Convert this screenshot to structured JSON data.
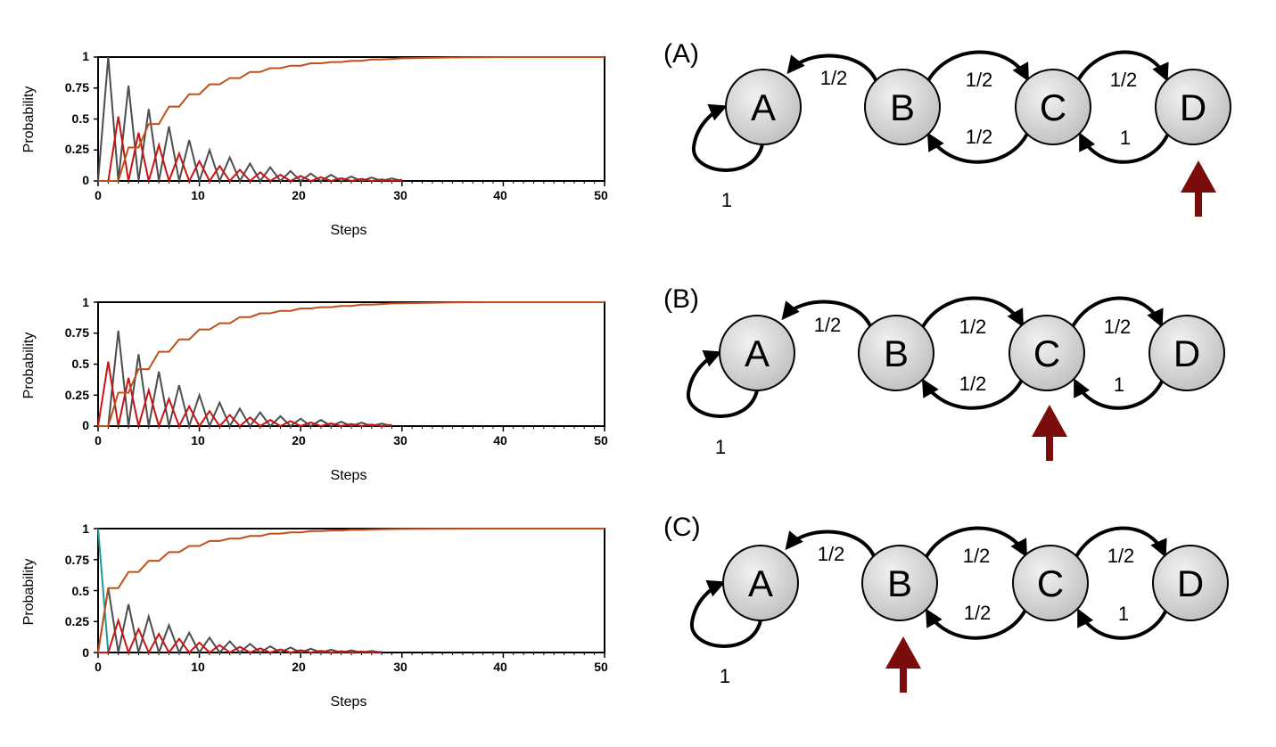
{
  "colors": {
    "absorbed": "#c0501a",
    "state_b": "#4d4d4d",
    "state_c": "#c81414",
    "state_d": "#1a9a9a",
    "arrow": "#7a0c0c",
    "node_fill": "#d9d9d9"
  },
  "chart_data": [
    {
      "type": "line",
      "xlabel": "Steps",
      "ylabel": "Probability",
      "xlim": [
        0,
        50
      ],
      "ylim": [
        0,
        1
      ],
      "x_ticks": [
        0,
        10,
        20,
        30,
        40,
        50
      ],
      "y_ticks": [
        0,
        0.25,
        0.5,
        0.75,
        1
      ],
      "y_tick_labels": [
        "0",
        "0.25",
        "0.5",
        "0.75",
        "1"
      ],
      "grid": false,
      "legend": "none",
      "start_state": "D",
      "series": [
        {
          "key": "state_b",
          "color": "#4d4d4d",
          "x": [
            0,
            1,
            2,
            3,
            4,
            5,
            6,
            7,
            8,
            9,
            10,
            11,
            12,
            13,
            14,
            15,
            16,
            17,
            18,
            19,
            20,
            21,
            22,
            23,
            24,
            25,
            26,
            27,
            28,
            29,
            30
          ],
          "y": [
            0,
            1,
            0,
            0.77,
            0,
            0.58,
            0,
            0.44,
            0,
            0.33,
            0,
            0.25,
            0,
            0.19,
            0,
            0.14,
            0,
            0.11,
            0,
            0.08,
            0,
            0.06,
            0,
            0.05,
            0,
            0.035,
            0,
            0.027,
            0,
            0.02,
            0
          ]
        },
        {
          "key": "state_c",
          "color": "#c81414",
          "x": [
            0,
            1,
            2,
            3,
            4,
            5,
            6,
            7,
            8,
            9,
            10,
            11,
            12,
            13,
            14,
            15,
            16,
            17,
            18,
            19,
            20,
            21,
            22,
            23,
            24,
            25,
            26,
            27,
            28,
            29,
            30
          ],
          "y": [
            0,
            0,
            0.52,
            0,
            0.39,
            0,
            0.29,
            0,
            0.22,
            0,
            0.16,
            0,
            0.12,
            0,
            0.09,
            0,
            0.07,
            0,
            0.05,
            0,
            0.04,
            0,
            0.03,
            0,
            0.022,
            0,
            0.017,
            0,
            0.013,
            0,
            0.01
          ]
        },
        {
          "key": "absorbed",
          "color": "#c0501a",
          "x": [
            0,
            1,
            2,
            3,
            4,
            5,
            6,
            7,
            8,
            9,
            10,
            11,
            12,
            13,
            14,
            15,
            16,
            17,
            18,
            19,
            20,
            21,
            22,
            23,
            24,
            25,
            26,
            27,
            28,
            29,
            30,
            32,
            34,
            36,
            40,
            50
          ],
          "y": [
            0,
            0,
            0,
            0.27,
            0.27,
            0.46,
            0.46,
            0.6,
            0.6,
            0.7,
            0.7,
            0.78,
            0.78,
            0.83,
            0.83,
            0.88,
            0.88,
            0.91,
            0.91,
            0.93,
            0.93,
            0.95,
            0.95,
            0.96,
            0.96,
            0.97,
            0.97,
            0.98,
            0.98,
            0.985,
            0.99,
            0.993,
            0.996,
            0.998,
            1,
            1
          ]
        }
      ]
    },
    {
      "type": "line",
      "xlabel": "Steps",
      "ylabel": "Probability",
      "xlim": [
        0,
        50
      ],
      "ylim": [
        0,
        1
      ],
      "x_ticks": [
        0,
        10,
        20,
        30,
        40,
        50
      ],
      "y_ticks": [
        0,
        0.25,
        0.5,
        0.75,
        1
      ],
      "y_tick_labels": [
        "0",
        "0.25",
        "0.5",
        "0.75",
        "1"
      ],
      "grid": false,
      "legend": "none",
      "start_state": "C",
      "series": [
        {
          "key": "state_b",
          "color": "#4d4d4d",
          "x": [
            0,
            1,
            2,
            3,
            4,
            5,
            6,
            7,
            8,
            9,
            10,
            11,
            12,
            13,
            14,
            15,
            16,
            17,
            18,
            19,
            20,
            21,
            22,
            23,
            24,
            25,
            26,
            27,
            28,
            29
          ],
          "y": [
            0,
            0,
            0.77,
            0,
            0.58,
            0,
            0.44,
            0,
            0.33,
            0,
            0.25,
            0,
            0.19,
            0,
            0.14,
            0,
            0.11,
            0,
            0.08,
            0,
            0.06,
            0,
            0.05,
            0,
            0.035,
            0,
            0.027,
            0,
            0.02,
            0
          ]
        },
        {
          "key": "state_c",
          "color": "#c81414",
          "x": [
            0,
            1,
            2,
            3,
            4,
            5,
            6,
            7,
            8,
            9,
            10,
            11,
            12,
            13,
            14,
            15,
            16,
            17,
            18,
            19,
            20,
            21,
            22,
            23,
            24,
            25,
            26,
            27,
            28,
            29
          ],
          "y": [
            0,
            0.52,
            0,
            0.39,
            0,
            0.29,
            0,
            0.22,
            0,
            0.16,
            0,
            0.12,
            0,
            0.09,
            0,
            0.07,
            0,
            0.05,
            0,
            0.04,
            0,
            0.03,
            0,
            0.022,
            0,
            0.017,
            0,
            0.013,
            0,
            0.01
          ]
        },
        {
          "key": "absorbed",
          "color": "#c0501a",
          "x": [
            0,
            1,
            2,
            3,
            4,
            5,
            6,
            7,
            8,
            9,
            10,
            11,
            12,
            13,
            14,
            15,
            16,
            17,
            18,
            19,
            20,
            21,
            22,
            23,
            24,
            25,
            26,
            27,
            28,
            29,
            31,
            33,
            35,
            39,
            50
          ],
          "y": [
            0,
            0,
            0.27,
            0.27,
            0.46,
            0.46,
            0.6,
            0.6,
            0.7,
            0.7,
            0.78,
            0.78,
            0.83,
            0.83,
            0.88,
            0.88,
            0.91,
            0.91,
            0.93,
            0.93,
            0.95,
            0.95,
            0.96,
            0.96,
            0.97,
            0.97,
            0.98,
            0.98,
            0.985,
            0.99,
            0.993,
            0.996,
            0.998,
            1,
            1
          ]
        }
      ]
    },
    {
      "type": "line",
      "xlabel": "Steps",
      "ylabel": "Probability",
      "xlim": [
        0,
        50
      ],
      "ylim": [
        0,
        1
      ],
      "x_ticks": [
        0,
        10,
        20,
        30,
        40,
        50
      ],
      "y_ticks": [
        0,
        0.25,
        0.5,
        0.75,
        1
      ],
      "y_tick_labels": [
        "0",
        "0.25",
        "0.5",
        "0.75",
        "1"
      ],
      "grid": false,
      "legend": "none",
      "start_state": "B",
      "series": [
        {
          "key": "state_d",
          "color": "#1a9a9a",
          "x": [
            0,
            1
          ],
          "y": [
            1,
            0
          ]
        },
        {
          "key": "state_b",
          "color": "#4d4d4d",
          "x": [
            0,
            1,
            2,
            3,
            4,
            5,
            6,
            7,
            8,
            9,
            10,
            11,
            12,
            13,
            14,
            15,
            16,
            17,
            18,
            19,
            20,
            21,
            22,
            23,
            24,
            25,
            26,
            27,
            28
          ],
          "y": [
            0,
            0.52,
            0,
            0.39,
            0,
            0.29,
            0,
            0.22,
            0,
            0.16,
            0,
            0.12,
            0,
            0.09,
            0,
            0.07,
            0,
            0.05,
            0,
            0.04,
            0,
            0.03,
            0,
            0.022,
            0,
            0.017,
            0,
            0.013,
            0
          ]
        },
        {
          "key": "state_c",
          "color": "#c81414",
          "x": [
            0,
            1,
            2,
            3,
            4,
            5,
            6,
            7,
            8,
            9,
            10,
            11,
            12,
            13,
            14,
            15,
            16,
            17,
            18,
            19,
            20,
            21,
            22,
            23,
            24,
            25,
            26,
            27,
            28
          ],
          "y": [
            0,
            0,
            0.26,
            0,
            0.19,
            0,
            0.15,
            0,
            0.11,
            0,
            0.08,
            0,
            0.06,
            0,
            0.045,
            0,
            0.034,
            0,
            0.025,
            0,
            0.019,
            0,
            0.014,
            0,
            0.011,
            0,
            0.008,
            0,
            0.006
          ]
        },
        {
          "key": "absorbed",
          "color": "#c0501a",
          "x": [
            0,
            1,
            2,
            3,
            4,
            5,
            6,
            7,
            8,
            9,
            10,
            11,
            12,
            13,
            14,
            15,
            16,
            17,
            18,
            19,
            20,
            21,
            22,
            23,
            24,
            25,
            26,
            27,
            28,
            30,
            32,
            34,
            38,
            50
          ],
          "y": [
            0,
            0.52,
            0.52,
            0.65,
            0.65,
            0.74,
            0.74,
            0.81,
            0.81,
            0.86,
            0.86,
            0.9,
            0.9,
            0.92,
            0.92,
            0.94,
            0.94,
            0.96,
            0.96,
            0.97,
            0.97,
            0.98,
            0.98,
            0.985,
            0.985,
            0.99,
            0.99,
            0.993,
            0.995,
            0.997,
            0.998,
            0.999,
            1,
            1
          ]
        }
      ]
    }
  ],
  "diagrams": [
    {
      "panel_label": "(A)",
      "nodes": [
        "A",
        "B",
        "C",
        "D"
      ],
      "self_loop_label": "1",
      "edge_labels": {
        "b_to_a": "1/2",
        "b_to_c": "1/2",
        "c_to_b": "1/2",
        "c_to_d": "1/2",
        "d_to_c": "1"
      },
      "start_node": "D"
    },
    {
      "panel_label": "(B)",
      "nodes": [
        "A",
        "B",
        "C",
        "D"
      ],
      "self_loop_label": "1",
      "edge_labels": {
        "b_to_a": "1/2",
        "b_to_c": "1/2",
        "c_to_b": "1/2",
        "c_to_d": "1/2",
        "d_to_c": "1"
      },
      "start_node": "C"
    },
    {
      "panel_label": "(C)",
      "nodes": [
        "A",
        "B",
        "C",
        "D"
      ],
      "self_loop_label": "1",
      "edge_labels": {
        "b_to_a": "1/2",
        "b_to_c": "1/2",
        "c_to_b": "1/2",
        "c_to_d": "1/2",
        "d_to_c": "1"
      },
      "start_node": "B"
    }
  ]
}
